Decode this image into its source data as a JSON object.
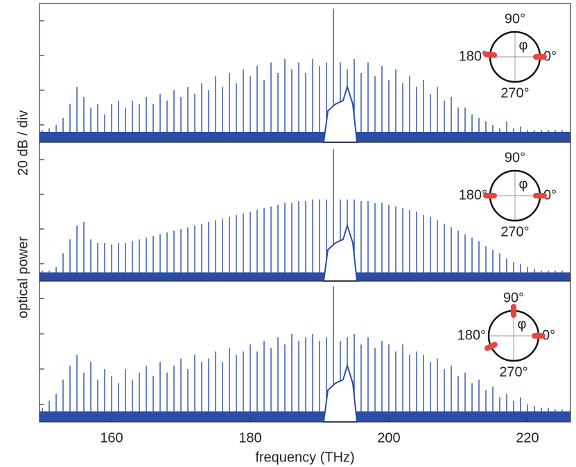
{
  "chart_data": [
    {
      "type": "comb",
      "xlim": [
        149.6,
        226.2
      ],
      "ylim": [
        -10,
        70
      ],
      "yticks": [
        0,
        20,
        40,
        60
      ],
      "color": "#2a4ea6",
      "floor": -4,
      "x": [
        150,
        151,
        152,
        153,
        154,
        155,
        156,
        157,
        158,
        159,
        160,
        161,
        162,
        163,
        164,
        165,
        166,
        167,
        168,
        169,
        170,
        171,
        172,
        173,
        174,
        175,
        176,
        177,
        178,
        179,
        180,
        181,
        182,
        183,
        184,
        185,
        186,
        187,
        188,
        189,
        190,
        191,
        192,
        193,
        194,
        195,
        196,
        197,
        198,
        199,
        200,
        201,
        202,
        203,
        204,
        205,
        206,
        207,
        208,
        209,
        210,
        211,
        212,
        213,
        214,
        215,
        216,
        217,
        218,
        219,
        220,
        221,
        222,
        223,
        224,
        225
      ],
      "values": [
        -3,
        -2,
        0,
        4,
        12,
        22,
        16,
        10,
        12,
        6,
        12,
        14,
        10,
        14,
        12,
        16,
        12,
        18,
        14,
        20,
        16,
        22,
        18,
        24,
        20,
        28,
        22,
        30,
        24,
        32,
        28,
        34,
        26,
        36,
        30,
        38,
        32,
        36,
        30,
        38,
        34,
        36,
        67,
        36,
        32,
        38,
        30,
        36,
        28,
        34,
        26,
        32,
        24,
        28,
        22,
        26,
        18,
        22,
        14,
        16,
        10,
        10,
        6,
        4,
        2,
        0,
        -2,
        2,
        -2,
        -1,
        -3,
        -3,
        -3,
        -3,
        -3,
        -3
      ],
      "pump": {
        "x": [
          190.6,
          191.2,
          192.3,
          193.4,
          194,
          194.8,
          195.4
        ],
        "values": [
          -10,
          8,
          12,
          14,
          22,
          12,
          -10
        ]
      },
      "inset": {
        "labels": [
          "90°",
          "180°",
          "270°",
          "0°"
        ],
        "symbol": "φ",
        "phases": [
          0,
          175
        ]
      }
    },
    {
      "type": "comb",
      "xlim": [
        149.6,
        226.2
      ],
      "ylim": [
        -10,
        70
      ],
      "yticks": [
        0,
        20,
        40,
        60
      ],
      "color": "#2a4ea6",
      "floor": -5,
      "ylabel": [
        "optical power",
        "20 dB / div"
      ],
      "x": [
        150,
        151,
        152,
        153,
        154,
        155,
        156,
        157,
        158,
        159,
        160,
        161,
        162,
        163,
        164,
        165,
        166,
        167,
        168,
        169,
        170,
        171,
        172,
        173,
        174,
        175,
        176,
        177,
        178,
        179,
        180,
        181,
        182,
        183,
        184,
        185,
        186,
        187,
        188,
        189,
        190,
        191,
        192,
        193,
        194,
        195,
        196,
        197,
        198,
        199,
        200,
        201,
        202,
        203,
        204,
        205,
        206,
        207,
        208,
        209,
        210,
        211,
        212,
        213,
        214,
        215,
        216,
        217,
        218,
        219,
        220,
        221,
        222,
        223,
        224,
        225
      ],
      "values": [
        -4,
        -4,
        -2,
        6,
        14,
        22,
        24,
        14,
        12,
        12,
        11,
        12,
        12,
        13,
        14,
        15,
        16,
        17,
        18,
        19,
        20,
        21,
        22,
        23,
        24,
        25,
        26,
        27,
        28,
        29,
        30,
        31,
        32,
        33,
        34,
        35,
        35,
        36,
        36,
        37,
        37,
        37,
        66,
        37,
        37,
        37,
        36,
        36,
        35,
        35,
        34,
        33,
        32,
        31,
        30,
        28,
        27,
        25,
        23,
        21,
        19,
        17,
        15,
        13,
        10,
        8,
        6,
        3,
        1,
        0,
        -2,
        -3,
        -4,
        -4,
        -4,
        -4
      ],
      "pump": {
        "x": [
          190.6,
          191.2,
          192.3,
          193.4,
          194,
          194.8,
          195.4
        ],
        "values": [
          -10,
          8,
          12,
          14,
          22,
          12,
          -10
        ]
      },
      "inset": {
        "labels": [
          "90°",
          "180°",
          "270°",
          "0°"
        ],
        "symbol": "φ",
        "phases": [
          0,
          180
        ]
      }
    },
    {
      "type": "comb",
      "xlim": [
        149.6,
        226.2
      ],
      "ylim": [
        -10,
        70
      ],
      "yticks": [
        0,
        20,
        40,
        60
      ],
      "color": "#2a4ea6",
      "floor": -4,
      "xticks": [
        160,
        180,
        200,
        220
      ],
      "xlabel": "frequency (THz)",
      "x": [
        150,
        151,
        152,
        153,
        154,
        155,
        156,
        157,
        158,
        159,
        160,
        161,
        162,
        163,
        164,
        165,
        166,
        167,
        168,
        169,
        170,
        171,
        172,
        173,
        174,
        175,
        176,
        177,
        178,
        179,
        180,
        181,
        182,
        183,
        184,
        185,
        186,
        187,
        188,
        189,
        190,
        191,
        192,
        193,
        194,
        195,
        196,
        197,
        198,
        199,
        200,
        201,
        202,
        203,
        204,
        205,
        206,
        207,
        208,
        209,
        210,
        211,
        212,
        213,
        214,
        215,
        216,
        217,
        218,
        219,
        220,
        221,
        222,
        223,
        224,
        225
      ],
      "values": [
        -2,
        2,
        6,
        14,
        22,
        28,
        18,
        24,
        14,
        20,
        16,
        12,
        20,
        14,
        18,
        22,
        16,
        24,
        18,
        22,
        26,
        20,
        28,
        24,
        26,
        30,
        24,
        32,
        28,
        30,
        34,
        30,
        36,
        32,
        38,
        34,
        40,
        36,
        38,
        40,
        36,
        38,
        67,
        36,
        38,
        40,
        34,
        38,
        32,
        36,
        34,
        30,
        34,
        28,
        30,
        28,
        24,
        26,
        20,
        22,
        16,
        18,
        12,
        14,
        8,
        10,
        4,
        6,
        2,
        4,
        0,
        -1,
        -2,
        -2,
        -3,
        -3
      ],
      "pump": {
        "x": [
          190.6,
          191.2,
          192.3,
          193.4,
          194,
          194.8,
          195.4
        ],
        "values": [
          -10,
          8,
          12,
          14,
          22,
          12,
          -10
        ]
      },
      "inset": {
        "labels": [
          "90°",
          "180°",
          "270°",
          "0°"
        ],
        "symbol": "φ",
        "phases": [
          0,
          90,
          205
        ]
      }
    }
  ]
}
